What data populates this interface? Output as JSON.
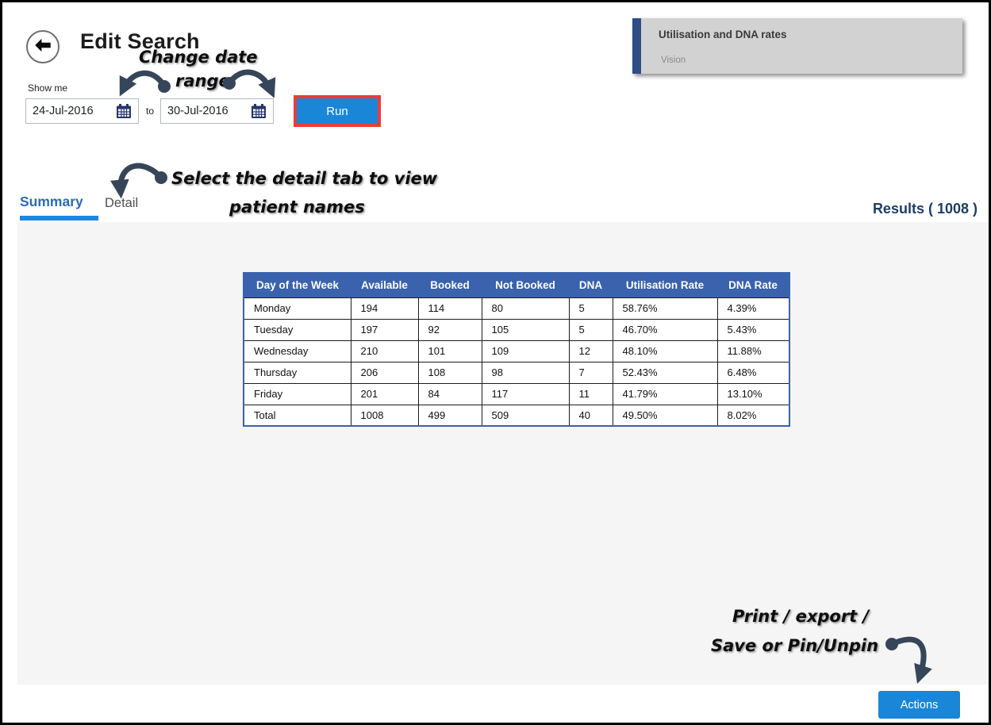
{
  "page": {
    "title": "Edit Search"
  },
  "search_controls": {
    "show_me_label": "Show me",
    "from_date": "24-Jul-2016",
    "to_label": "to",
    "to_date": "30-Jul-2016",
    "run_button_label": "Run"
  },
  "report_card": {
    "title": "Utilisation and DNA rates",
    "subtitle": "Vision"
  },
  "tabs": {
    "summary": "Summary",
    "detail": "Detail"
  },
  "results_label": "Results ( 1008 )",
  "results_table": {
    "columns": [
      "Day of the Week",
      "Available",
      "Booked",
      "Not Booked",
      "DNA",
      "Utilisation Rate",
      "DNA Rate"
    ],
    "rows": [
      [
        "Monday",
        "194",
        "114",
        "80",
        "5",
        "58.76%",
        "4.39%"
      ],
      [
        "Tuesday",
        "197",
        "92",
        "105",
        "5",
        "46.70%",
        "5.43%"
      ],
      [
        "Wednesday",
        "210",
        "101",
        "109",
        "12",
        "48.10%",
        "11.88%"
      ],
      [
        "Thursday",
        "206",
        "108",
        "98",
        "7",
        "52.43%",
        "6.48%"
      ],
      [
        "Friday",
        "201",
        "84",
        "117",
        "11",
        "41.79%",
        "13.10%"
      ],
      [
        "Total",
        "1008",
        "499",
        "509",
        "40",
        "49.50%",
        "8.02%"
      ]
    ]
  },
  "actions_button_label": "Actions",
  "annotations": {
    "change_date": {
      "line1": "Change date",
      "line2": "range"
    },
    "detail_tab": {
      "line1": "Select the detail tab to view",
      "line2": "patient names"
    },
    "actions": {
      "line1": "Print / export /",
      "line2": "Save or Pin/Unpin"
    }
  },
  "icons": {
    "back": "circled-left-arrow-icon",
    "calendar": "calendar-icon"
  },
  "colors": {
    "primary_blue": "#1a86d8",
    "table_header_blue": "#3a62ad",
    "tab_active_blue": "#2a6cb5",
    "tab_underline_blue": "#1e86e0",
    "highlight_red": "#ee3b36",
    "card_accent_navy": "#2e4d87",
    "card_gray": "#d2d2d2",
    "results_navy": "#1c3e67",
    "annotation_arrow": "#36455a",
    "content_bg": "#f5f5f6"
  }
}
